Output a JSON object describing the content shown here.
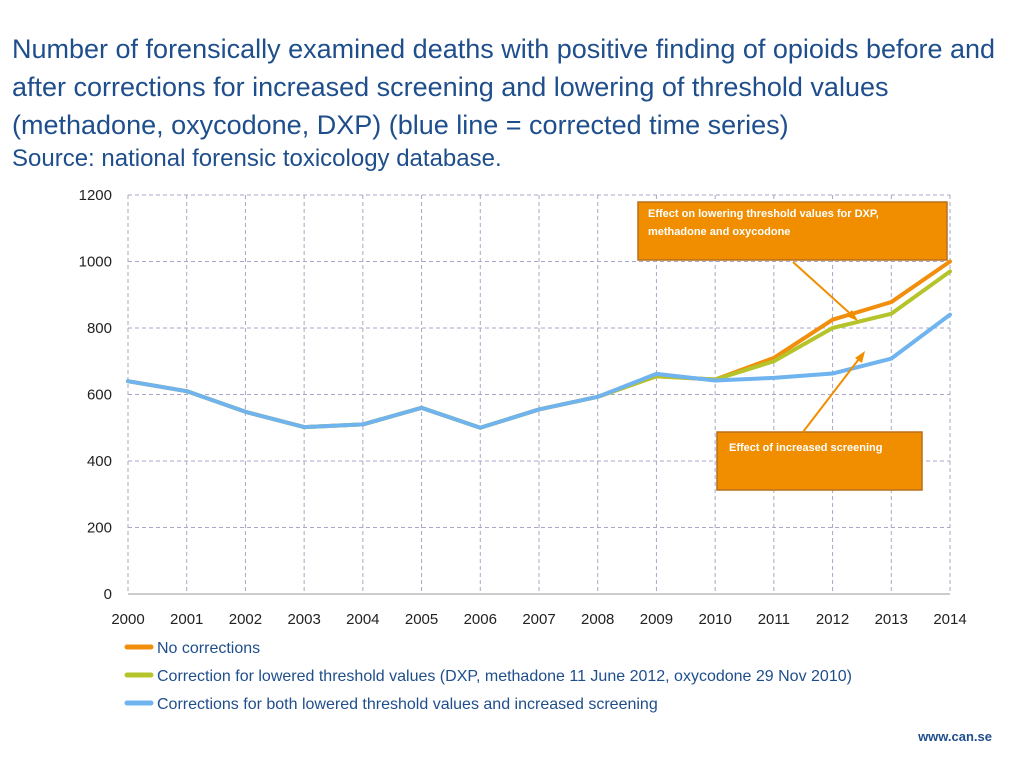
{
  "title": "Number of forensically examined deaths with positive finding of opioids before and after corrections for increased screening  and lowering of threshold values (methadone, oxycodone, DXP) (blue line = corrected time series)",
  "source": "Source: national forensic toxicology database.",
  "footer": "www.can.se",
  "colors": {
    "text": "#1f4e8c",
    "grid": "#a7a7c7",
    "callout_fill": "#f18e00",
    "callout_border": "#b86f1a"
  },
  "chart_data": {
    "type": "line",
    "x": [
      "2000",
      "2001",
      "2002",
      "2003",
      "2004",
      "2005",
      "2006",
      "2007",
      "2008",
      "2009",
      "2010",
      "2011",
      "2012",
      "2013",
      "2014"
    ],
    "ylim": [
      0,
      1200
    ],
    "yticks": [
      0,
      200,
      400,
      600,
      800,
      1000,
      1200
    ],
    "grid": true,
    "legend_position": "bottom",
    "series": [
      {
        "name": "No corrections",
        "color": "#f18e0c",
        "values": [
          640,
          610,
          548,
          502,
          510,
          560,
          500,
          555,
          593,
          655,
          645,
          710,
          825,
          878,
          1000
        ]
      },
      {
        "name": "Correction for lowered threshold values (DXP, methadone 11 June 2012, oxycodone 29 Nov 2010)",
        "color": "#b4c42a",
        "values": [
          640,
          610,
          548,
          502,
          510,
          560,
          500,
          555,
          593,
          655,
          645,
          700,
          800,
          843,
          970
        ]
      },
      {
        "name": "Corrections for both lowered threshold values and increased screening",
        "color": "#6fb3ef",
        "values": [
          640,
          610,
          548,
          502,
          510,
          560,
          500,
          555,
          593,
          662,
          642,
          650,
          663,
          708,
          840
        ]
      }
    ],
    "annotations": [
      {
        "text": "Effect on lowering threshold values for DXP, methadone and oxycodone"
      },
      {
        "text": "Effect of increased screening"
      }
    ]
  }
}
